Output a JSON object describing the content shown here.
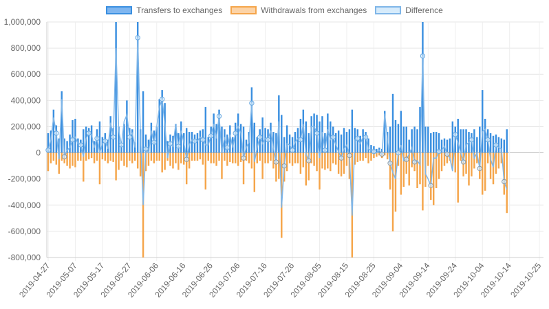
{
  "chart_data": {
    "type": "bar",
    "legend_position": "top",
    "grid": true,
    "ylim": [
      -800000,
      1000000
    ],
    "yticks": [
      -800000,
      -600000,
      -400000,
      -200000,
      0,
      200000,
      400000,
      600000,
      800000,
      1000000
    ],
    "ytick_labels": [
      "-800,000",
      "-600,000",
      "-400,000",
      "-200,000",
      "0",
      "200,000",
      "400,000",
      "600,000",
      "800,000",
      "1,000,000"
    ],
    "x_start": "2019-04-27",
    "x_end": "2019-10-26",
    "xtick_labels": [
      "2019-04-27",
      "2019-05-07",
      "2019-05-17",
      "2019-05-27",
      "2019-06-06",
      "2019-06-16",
      "2019-06-26",
      "2019-07-06",
      "2019-07-16",
      "2019-07-26",
      "2019-08-05",
      "2019-08-15",
      "2019-08-25",
      "2019-09-04",
      "2019-09-14",
      "2019-09-24",
      "2019-10-04",
      "2019-10-14",
      "2019-10-25"
    ],
    "series": [
      {
        "name": "Transfers to exchanges",
        "color": "#3a8fe0",
        "fill": "#7fb6f0",
        "type": "bar",
        "values": [
          150000,
          170000,
          330000,
          210000,
          110000,
          470000,
          110000,
          90000,
          140000,
          250000,
          260000,
          110000,
          100000,
          180000,
          200000,
          190000,
          210000,
          90000,
          180000,
          240000,
          120000,
          150000,
          100000,
          280000,
          190000,
          1000000,
          200000,
          90000,
          220000,
          400000,
          190000,
          180000,
          80000,
          1000000,
          180000,
          470000,
          140000,
          100000,
          230000,
          170000,
          200000,
          410000,
          480000,
          380000,
          90000,
          140000,
          130000,
          220000,
          150000,
          240000,
          150000,
          190000,
          160000,
          160000,
          140000,
          150000,
          170000,
          180000,
          350000,
          120000,
          200000,
          300000,
          220000,
          330000,
          200000,
          180000,
          140000,
          210000,
          120000,
          230000,
          300000,
          220000,
          200000,
          100000,
          160000,
          500000,
          230000,
          120000,
          180000,
          270000,
          190000,
          180000,
          230000,
          160000,
          150000,
          440000,
          290000,
          120000,
          210000,
          140000,
          120000,
          160000,
          190000,
          260000,
          330000,
          240000,
          150000,
          280000,
          300000,
          290000,
          240000,
          280000,
          150000,
          300000,
          240000,
          200000,
          150000,
          170000,
          140000,
          190000,
          160000,
          180000,
          330000,
          190000,
          180000,
          130000,
          180000,
          160000,
          110000,
          60000,
          50000,
          30000,
          40000,
          30000,
          320000,
          160000,
          200000,
          450000,
          250000,
          220000,
          320000,
          200000,
          200000,
          100000,
          180000,
          200000,
          180000,
          350000,
          1000000,
          200000,
          200000,
          150000,
          160000,
          160000,
          150000,
          100000,
          110000,
          100000,
          110000,
          240000,
          200000,
          260000,
          180000,
          180000,
          180000,
          160000,
          150000,
          180000,
          120000,
          200000,
          480000,
          260000,
          180000,
          150000,
          130000,
          140000,
          120000,
          110000,
          100000,
          180000
        ]
      },
      {
        "name": "Withdrawals from exchanges",
        "color": "#f5a54a",
        "fill": "#fcd3a6",
        "type": "bar",
        "values": [
          -140000,
          -80000,
          -60000,
          -90000,
          -160000,
          -60000,
          -80000,
          -100000,
          -120000,
          -100000,
          -110000,
          -60000,
          -60000,
          -220000,
          -60000,
          -50000,
          -40000,
          -80000,
          -60000,
          -240000,
          -50000,
          -60000,
          -80000,
          -60000,
          -70000,
          -210000,
          -130000,
          -60000,
          -100000,
          -110000,
          -60000,
          -80000,
          -60000,
          -120000,
          -180000,
          -800000,
          -140000,
          -100000,
          -60000,
          -80000,
          -60000,
          -60000,
          -150000,
          -130000,
          -60000,
          -100000,
          -120000,
          -80000,
          -130000,
          -80000,
          -90000,
          -240000,
          -120000,
          -60000,
          -60000,
          -60000,
          -50000,
          -90000,
          -280000,
          -60000,
          -80000,
          -80000,
          -100000,
          -60000,
          -200000,
          -60000,
          -100000,
          -70000,
          -80000,
          -80000,
          -100000,
          -70000,
          -240000,
          -60000,
          -80000,
          -120000,
          -300000,
          -80000,
          -60000,
          -200000,
          -80000,
          -80000,
          -60000,
          -120000,
          -220000,
          -200000,
          -650000,
          -220000,
          -140000,
          -80000,
          -100000,
          -80000,
          -80000,
          -160000,
          -110000,
          -250000,
          -210000,
          -80000,
          -100000,
          -140000,
          -280000,
          -120000,
          -130000,
          -120000,
          -140000,
          -80000,
          -90000,
          -160000,
          -180000,
          -160000,
          -100000,
          -200000,
          -820000,
          -90000,
          -70000,
          -60000,
          -60000,
          -40000,
          -80000,
          -60000,
          -40000,
          -30000,
          -20000,
          -40000,
          -20000,
          -50000,
          -280000,
          -600000,
          -450000,
          -100000,
          -320000,
          -260000,
          -160000,
          -250000,
          -110000,
          -140000,
          -270000,
          -240000,
          -440000,
          -260000,
          -100000,
          -360000,
          -400000,
          -270000,
          -200000,
          -140000,
          -100000,
          -80000,
          -60000,
          -110000,
          -150000,
          -380000,
          -60000,
          -180000,
          -160000,
          -250000,
          -180000,
          -120000,
          -80000,
          -200000,
          -320000,
          -290000,
          -80000,
          -200000,
          -240000,
          -160000,
          -120000,
          -80000,
          -320000,
          -460000
        ]
      },
      {
        "name": "Difference",
        "color": "#7fb6e8",
        "fill": "#d6ebfb",
        "type": "line",
        "values": [
          20000,
          100000,
          270000,
          150000,
          -50000,
          410000,
          -30000,
          20000,
          40000,
          100000,
          120000,
          70000,
          60000,
          -30000,
          110000,
          150000,
          140000,
          40000,
          110000,
          0,
          70000,
          90000,
          30000,
          230000,
          120000,
          800000,
          170000,
          60000,
          240000,
          290000,
          120000,
          150000,
          40000,
          880000,
          150000,
          -400000,
          30000,
          0,
          170000,
          80000,
          200000,
          350000,
          410000,
          220000,
          -40000,
          70000,
          50000,
          220000,
          50000,
          170000,
          80000,
          -50000,
          60000,
          100000,
          90000,
          90000,
          120000,
          100000,
          60000,
          60000,
          130000,
          220000,
          110000,
          280000,
          0,
          120000,
          40000,
          140000,
          40000,
          150000,
          200000,
          150000,
          -40000,
          40000,
          80000,
          380000,
          -70000,
          40000,
          120000,
          70000,
          110000,
          100000,
          170000,
          40000,
          -70000,
          240000,
          -420000,
          -100000,
          70000,
          60000,
          20000,
          80000,
          110000,
          100000,
          220000,
          -10000,
          -60000,
          200000,
          200000,
          150000,
          -40000,
          160000,
          20000,
          180000,
          100000,
          120000,
          60000,
          10000,
          -40000,
          30000,
          60000,
          -20000,
          -480000,
          100000,
          110000,
          70000,
          120000,
          120000,
          30000,
          20000,
          10000,
          0,
          20000,
          -10000,
          300000,
          110000,
          -80000,
          -150000,
          -200000,
          0,
          60000,
          -60000,
          -50000,
          -10000,
          40000,
          -70000,
          -60000,
          -90000,
          740000,
          -160000,
          -200000,
          -250000,
          -40000,
          -40000,
          10000,
          20000,
          50000,
          -10000,
          -40000,
          -140000,
          140000,
          80000,
          0,
          -70000,
          60000,
          80000,
          100000,
          -40000,
          0,
          -120000,
          160000,
          180000,
          100000,
          -50000,
          -110000,
          60000,
          40000,
          30000,
          -220000,
          -280000
        ]
      }
    ]
  },
  "legend": [
    {
      "label": "Transfers to exchanges",
      "stroke": "#3a8fe0",
      "fill": "#7fb6f0"
    },
    {
      "label": "Withdrawals from exchanges",
      "stroke": "#f5a54a",
      "fill": "#fcd3a6"
    },
    {
      "label": "Difference",
      "stroke": "#7fb6e8",
      "fill": "#d6ebfb"
    }
  ]
}
